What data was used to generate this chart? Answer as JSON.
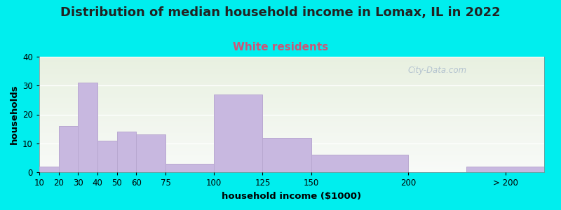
{
  "title": "Distribution of median household income in Lomax, IL in 2022",
  "subtitle": "White residents",
  "xlabel": "household income ($1000)",
  "ylabel": "households",
  "background_color": "#00EEEE",
  "plot_bg_color_top": "#e8f0e0",
  "plot_bg_color_bottom": "#f8faf8",
  "bar_color": "#c8b8e0",
  "bar_edge_color": "#b8a8d0",
  "categories": [
    "10",
    "20",
    "30",
    "40",
    "50",
    "60",
    "75",
    "100",
    "125",
    "150",
    "200",
    "> 200"
  ],
  "values": [
    2,
    16,
    31,
    11,
    14,
    13,
    3,
    27,
    12,
    6,
    0,
    2
  ],
  "ylim": [
    0,
    40
  ],
  "yticks": [
    0,
    10,
    20,
    30,
    40
  ],
  "title_fontsize": 13,
  "subtitle_fontsize": 11,
  "subtitle_color": "#cc5577",
  "axis_label_fontsize": 9.5,
  "tick_fontsize": 8.5,
  "watermark_text": "City-Data.com",
  "watermark_color": "#aabbcc",
  "x_edges": [
    10,
    20,
    30,
    40,
    50,
    60,
    75,
    100,
    125,
    150,
    200,
    230,
    270
  ],
  "x_tick_positions": [
    10,
    20,
    30,
    40,
    50,
    60,
    75,
    100,
    125,
    150,
    200,
    250
  ],
  "x_tick_labels": [
    "10",
    "20",
    "30",
    "40",
    "50",
    "60",
    "75",
    "100",
    "125",
    "150",
    "200",
    "> 200"
  ]
}
